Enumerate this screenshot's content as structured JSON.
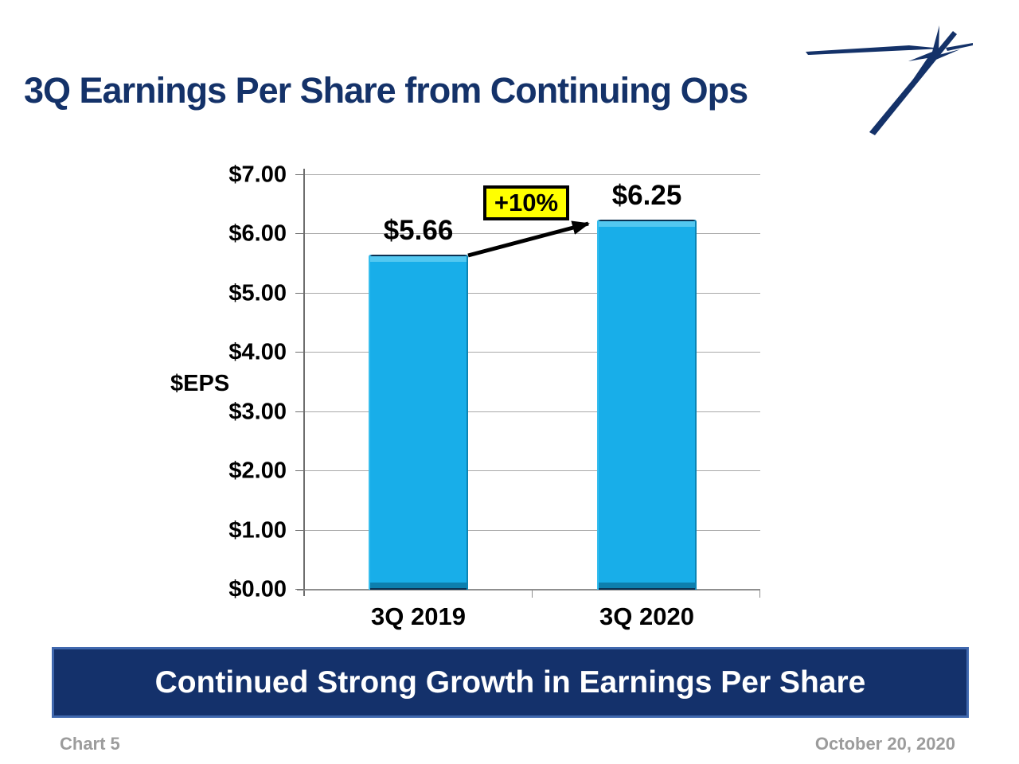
{
  "slide": {
    "title": "3Q Earnings Per Share from Continuing Ops",
    "banner_message": "Continued Strong Growth in Earnings Per Share",
    "footer_left": "Chart 5",
    "footer_right": "October 20, 2020",
    "logo_icon": "lockheed-martin-star-icon",
    "colors": {
      "navy": "#143269",
      "banner_fill": "#14316b",
      "banner_border": "#4068ae",
      "footer_gray": "#9c9c9c"
    }
  },
  "chart_data": {
    "type": "bar",
    "categories": [
      "3Q 2019",
      "3Q 2020"
    ],
    "values": [
      5.66,
      6.25
    ],
    "bar_labels": [
      "$5.66",
      "$6.25"
    ],
    "annotation": "+10%",
    "ylabel": "$EPS",
    "yticks": [
      "$7.00",
      "$6.00",
      "$5.00",
      "$4.00",
      "$3.00",
      "$2.00",
      "$1.00",
      "$0.00"
    ],
    "ylim": [
      0,
      7
    ],
    "grid": true,
    "legend": "none",
    "bar_color": "#18aee9",
    "annotation_bg": "#ffff00",
    "annotation_border": "#000000"
  }
}
